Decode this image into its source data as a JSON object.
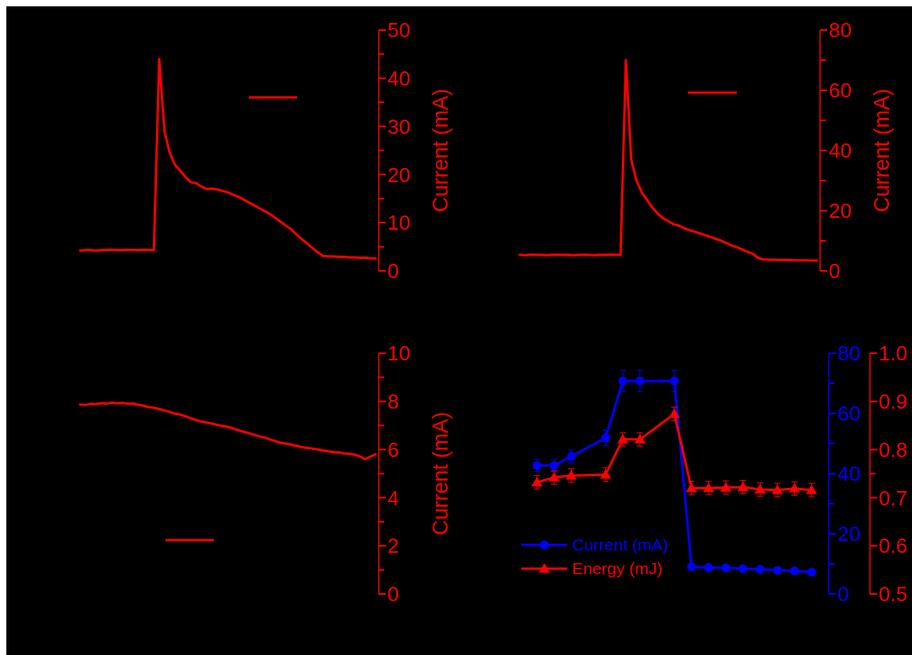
{
  "chart_data": [
    {
      "type": "line",
      "ylabel": "Current (mA)",
      "tick_labels": "y",
      "legend": false,
      "categories": [
        null,
        null,
        null,
        null,
        null,
        null,
        null,
        null,
        null,
        null,
        null,
        null,
        null,
        null,
        null,
        null,
        null,
        null,
        null,
        null,
        null,
        null,
        null,
        null,
        null,
        null,
        null,
        null,
        null,
        null,
        null,
        null,
        null,
        null,
        null,
        null,
        null,
        null,
        null,
        null,
        null,
        null,
        null,
        null,
        null,
        null,
        null,
        null,
        null,
        null,
        null,
        null,
        null,
        null,
        null,
        null,
        null
      ],
      "series": [
        {
          "color": "#ff0000",
          "values": [
            4.2,
            4.3,
            4.3,
            4.2,
            4.3,
            4.3,
            4.4,
            4.3,
            4.3,
            4.4,
            4.3,
            4.3,
            4.4,
            4.3,
            4.3,
            44,
            29,
            24.5,
            22,
            20.8,
            19.5,
            18.4,
            18.2,
            17.5,
            17.0,
            17.1,
            16.9,
            16.6,
            16.3,
            15.8,
            15.4,
            14.8,
            14.2,
            13.6,
            13.0,
            12.4,
            11.8,
            11.0,
            10.2,
            9.4,
            8.6,
            7.6,
            6.6,
            5.7,
            4.8,
            3.9,
            3.1,
            3.0,
            3.0,
            2.9,
            2.9,
            2.8,
            2.8,
            2.7,
            2.7,
            2.6,
            2.6
          ]
        }
      ],
      "ylim": [
        0,
        50
      ],
      "yticks": [
        0,
        {
          "value": 5,
          "label": null
        },
        10,
        {
          "value": 15,
          "label": null
        },
        20,
        {
          "value": 25,
          "label": null
        },
        30,
        {
          "value": 35,
          "label": null
        },
        40,
        {
          "value": 45,
          "label": null
        },
        50
      ]
    },
    {
      "type": "line",
      "ylabel": "Current (mA)",
      "tick_labels": "y",
      "legend": false,
      "categories": [
        null,
        null,
        null,
        null,
        null,
        null,
        null,
        null,
        null,
        null,
        null,
        null,
        null,
        null,
        null,
        null,
        null,
        null,
        null,
        null,
        null,
        null,
        null,
        null,
        null,
        null,
        null,
        null,
        null,
        null,
        null,
        null,
        null,
        null,
        null,
        null,
        null,
        null,
        null,
        null,
        null,
        null,
        null,
        null,
        null,
        null,
        null,
        null,
        null,
        null,
        null,
        null,
        null,
        null,
        null,
        null,
        null
      ],
      "series": [
        {
          "color": "#ff0000",
          "values": [
            5.3,
            5.2,
            5.4,
            5.3,
            5.3,
            5.2,
            5.3,
            5.4,
            5.3,
            5.3,
            5.2,
            5.3,
            5.4,
            5.3,
            5.2,
            5.3,
            5.3,
            5.4,
            5.3,
            5.3,
            70,
            37,
            30,
            26,
            23.5,
            21,
            19,
            17.5,
            16.5,
            15.5,
            15,
            14.2,
            13.5,
            13,
            12.4,
            11.8,
            11.2,
            10.6,
            10,
            9.2,
            8.4,
            7.8,
            7,
            6.3,
            5.6,
            4.2,
            3.8,
            3.7,
            3.7,
            3.6,
            3.6,
            3.6,
            3.5,
            3.5,
            3.5,
            3.4,
            3.4
          ]
        }
      ],
      "ylim": [
        0,
        80
      ],
      "yticks": [
        0,
        {
          "value": 10,
          "label": null
        },
        20,
        {
          "value": 30,
          "label": null
        },
        40,
        {
          "value": 50,
          "label": null
        },
        60,
        {
          "value": 70,
          "label": null
        },
        80
      ]
    },
    {
      "type": "line",
      "ylabel": "Current (mA)",
      "tick_labels": "y",
      "legend": false,
      "categories": [
        null,
        null,
        null,
        null,
        null,
        null,
        null,
        null,
        null,
        null,
        null,
        null,
        null,
        null,
        null,
        null,
        null,
        null,
        null,
        null,
        null,
        null,
        null,
        null,
        null,
        null,
        null,
        null,
        null,
        null,
        null,
        null,
        null,
        null,
        null,
        null,
        null,
        null,
        null,
        null,
        null,
        null,
        null,
        null,
        null,
        null,
        null,
        null,
        null,
        null,
        null,
        null,
        null,
        null,
        null,
        null,
        null
      ],
      "series": [
        {
          "color": "#ff0000",
          "values": [
            7.87,
            7.85,
            7.9,
            7.88,
            7.93,
            7.9,
            7.95,
            7.92,
            7.94,
            7.9,
            7.91,
            7.86,
            7.82,
            7.76,
            7.74,
            7.68,
            7.62,
            7.56,
            7.49,
            7.45,
            7.38,
            7.3,
            7.22,
            7.16,
            7.12,
            7.08,
            7.02,
            6.98,
            6.94,
            6.88,
            6.8,
            6.74,
            6.68,
            6.61,
            6.55,
            6.5,
            6.42,
            6.35,
            6.28,
            6.25,
            6.2,
            6.15,
            6.1,
            6.07,
            6.04,
            6.0,
            5.96,
            5.93,
            5.9,
            5.88,
            5.84,
            5.82,
            5.79,
            5.72,
            5.6,
            5.7,
            5.8
          ]
        }
      ],
      "ylim": [
        0,
        10
      ],
      "yticks": [
        0,
        {
          "value": 1,
          "label": null
        },
        2,
        {
          "value": 3,
          "label": null
        },
        4,
        {
          "value": 5,
          "label": null
        },
        6,
        {
          "value": 7,
          "label": null
        },
        8,
        {
          "value": 9,
          "label": null
        },
        10
      ]
    },
    {
      "type": "line",
      "tick_labels": "y",
      "legend": "bottom left",
      "categories": [
        null,
        null,
        null,
        null,
        null,
        null,
        null,
        null,
        null,
        null,
        null,
        null,
        null,
        null,
        null,
        null,
        null
      ],
      "series": [
        {
          "name": "Current (mA)",
          "color": "#0000ff",
          "marker": "circle",
          "values": [
            42.7,
            42.7,
            45.7,
            null,
            51.9,
            70.8,
            70.8,
            null,
            70.8,
            9.1,
            8.8,
            8.7,
            8.4,
            8.2,
            7.9,
            7.7,
            7.3
          ],
          "errors": [
            2,
            2,
            2.2,
            null,
            2.6,
            3.5,
            3.5,
            null,
            3.5,
            null,
            null,
            null,
            null,
            null,
            null,
            null,
            null
          ]
        },
        {
          "name": "Energy (mJ)",
          "color": "#ff0000",
          "marker": "triangle",
          "axis": "y2",
          "values": [
            0.732,
            0.742,
            0.746,
            null,
            0.748,
            0.821,
            0.821,
            null,
            0.874,
            0.72,
            0.72,
            0.721,
            0.722,
            0.717,
            0.716,
            0.719,
            0.716
          ],
          "errors": [
            0.014,
            0.014,
            0.014,
            null,
            0.014,
            0.014,
            0.014,
            null,
            0.014,
            0.014,
            0.014,
            0.014,
            0.014,
            0.014,
            0.014,
            0.014,
            0.014
          ]
        }
      ],
      "ylim": [
        0,
        80
      ],
      "yticks": [
        0,
        {
          "value": 10,
          "label": null
        },
        20,
        {
          "value": 30,
          "label": null
        },
        40,
        {
          "value": 50,
          "label": null
        },
        60,
        {
          "value": 70,
          "label": null
        },
        80
      ],
      "y2lim": [
        0.5,
        1.0
      ],
      "y2ticks": [
        0.5,
        0.6,
        0.7,
        {
          "value": 0.75,
          "label": null
        },
        0.8,
        0.9,
        {
          "value": 1,
          "label": "1.0"
        }
      ]
    }
  ]
}
